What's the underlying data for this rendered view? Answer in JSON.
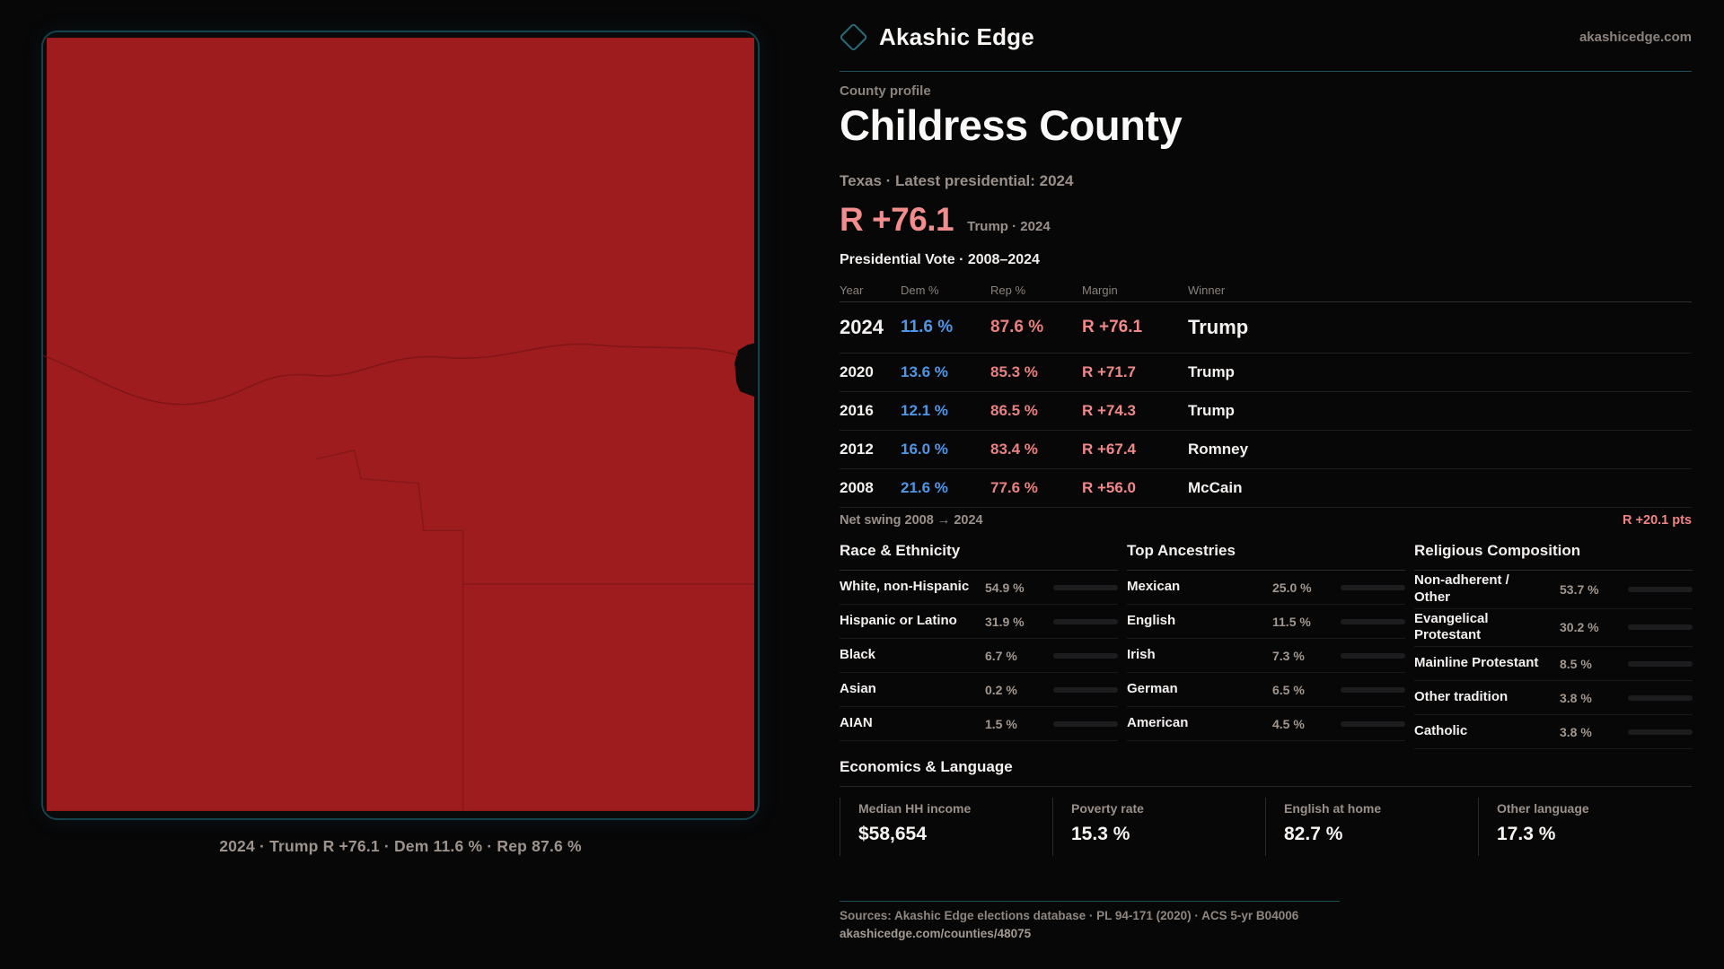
{
  "brand": {
    "name": "Akashic Edge",
    "domain": "akashicedge.com"
  },
  "palette": {
    "accent_teal": "#1e4f5a",
    "dem_blue": "#4f96e8",
    "rep_red": "#f08989",
    "map_red": "#9e1c1e"
  },
  "profile": {
    "kicker": "County profile",
    "title": "Childress County",
    "subtitle": "Texas · Latest presidential: 2024"
  },
  "headline": {
    "value": "R +76.1",
    "context": "Trump · 2024"
  },
  "vote_table": {
    "title": "Presidential Vote · 2008–2024",
    "columns": [
      "Year",
      "Dem %",
      "Rep %",
      "Margin",
      "Winner"
    ],
    "rows": [
      {
        "year": "2024",
        "dem": "11.6 %",
        "rep": "87.6 %",
        "margin": "R +76.1",
        "winner": "Trump"
      },
      {
        "year": "2020",
        "dem": "13.6 %",
        "rep": "85.3 %",
        "margin": "R +71.7",
        "winner": "Trump"
      },
      {
        "year": "2016",
        "dem": "12.1 %",
        "rep": "86.5 %",
        "margin": "R +74.3",
        "winner": "Trump"
      },
      {
        "year": "2012",
        "dem": "16.0 %",
        "rep": "83.4 %",
        "margin": "R +67.4",
        "winner": "Romney"
      },
      {
        "year": "2008",
        "dem": "21.6 %",
        "rep": "77.6 %",
        "margin": "R +56.0",
        "winner": "McCain"
      }
    ]
  },
  "net_swing": {
    "label": "Net swing 2008 → 2024",
    "value": "R +20.1 pts"
  },
  "race": {
    "title": "Race & Ethnicity",
    "items": [
      {
        "label": "White, non-Hispanic",
        "value": "54.9 %",
        "pct": 54.9,
        "color": "#9db0c9"
      },
      {
        "label": "Hispanic or Latino",
        "value": "31.9 %",
        "pct": 31.9,
        "color": "#d89a30"
      },
      {
        "label": "Black",
        "value": "6.7 %",
        "pct": 6.7,
        "color": "#8d80dd"
      },
      {
        "label": "Asian",
        "value": "0.2 %",
        "pct": 0.2,
        "color": "#8fa6c2"
      },
      {
        "label": "AIAN",
        "value": "1.5 %",
        "pct": 1.5,
        "color": "#a4621d"
      }
    ]
  },
  "ancestries": {
    "title": "Top Ancestries",
    "items": [
      {
        "label": "Mexican",
        "value": "25.0 %",
        "pct": 25.0,
        "color": "#d89a30"
      },
      {
        "label": "English",
        "value": "11.5 %",
        "pct": 11.5,
        "color": "#8fa6c2"
      },
      {
        "label": "Irish",
        "value": "7.3 %",
        "pct": 7.3,
        "color": "#8fa6c2"
      },
      {
        "label": "German",
        "value": "6.5 %",
        "pct": 6.5,
        "color": "#8fa6c2"
      },
      {
        "label": "American",
        "value": "4.5 %",
        "pct": 4.5,
        "color": "#8fa6c2"
      }
    ]
  },
  "religion": {
    "title": "Religious Composition",
    "items": [
      {
        "label": "Non-adherent /\nOther",
        "value": "53.7 %",
        "pct": 53.7,
        "color": "#707f94"
      },
      {
        "label": "Evangelical\nProtestant",
        "value": "30.2 %",
        "pct": 30.2,
        "color": "#e27979"
      },
      {
        "label": "Mainline Protestant",
        "value": "8.5 %",
        "pct": 8.5,
        "color": "#4f95e8"
      },
      {
        "label": "Other tradition",
        "value": "3.8 %",
        "pct": 3.8,
        "color": "#7d8a9c"
      },
      {
        "label": "Catholic",
        "value": "3.8 %",
        "pct": 3.8,
        "color": "#e3ae33"
      }
    ]
  },
  "economics": {
    "title": "Economics & Language",
    "stats": [
      {
        "label": "Median HH income",
        "value": "$58,654"
      },
      {
        "label": "Poverty rate",
        "value": "15.3 %"
      },
      {
        "label": "English at home",
        "value": "82.7 %"
      },
      {
        "label": "Other language",
        "value": "17.3 %"
      }
    ]
  },
  "map": {
    "caption": "2024 · Trump R +76.1 · Dem 11.6 % · Rep 87.6 %",
    "fill": "#9e1c1e",
    "boundary_color": "#6e1214"
  },
  "footer": {
    "sources": "Sources: Akashic Edge elections database · PL 94-171 (2020) · ACS 5-yr B04006",
    "permalink": "akashicedge.com/counties/48075"
  }
}
